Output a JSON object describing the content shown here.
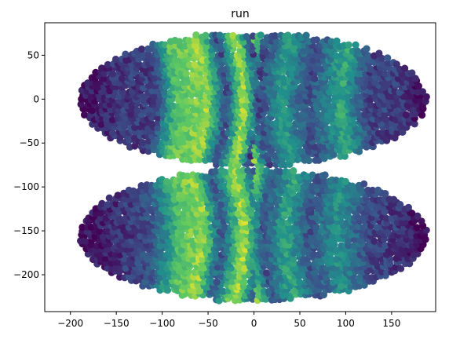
{
  "chart_data": {
    "type": "scatter",
    "title": "run",
    "xlabel": "",
    "ylabel": "",
    "xlim": [
      -228,
      198
    ],
    "ylim": [
      -242,
      87
    ],
    "xticks": [
      -200,
      -150,
      -100,
      -50,
      0,
      50,
      100,
      150
    ],
    "yticks": [
      50,
      0,
      -50,
      -100,
      -150,
      -200
    ],
    "grid": false,
    "colormap": "viridis",
    "colormap_stops": [
      "#440154",
      "#3b528b",
      "#21918c",
      "#5ec962",
      "#fde725"
    ],
    "series": [
      {
        "shape": "ellipse",
        "center": [
          0,
          0
        ],
        "semi_axes": [
          190,
          76
        ],
        "bands": [
          {
            "x": -190,
            "value": 0.04
          },
          {
            "x": -150,
            "value": 0.15
          },
          {
            "x": -105,
            "value": 0.2
          },
          {
            "x": -85,
            "value": 0.7
          },
          {
            "x": -50,
            "value": 0.85
          },
          {
            "x": -30,
            "value": 0.2
          },
          {
            "x": -10,
            "value": 0.92
          },
          {
            "x": 5,
            "value": 0.2
          },
          {
            "x": 30,
            "value": 0.55
          },
          {
            "x": 60,
            "value": 0.22
          },
          {
            "x": 95,
            "value": 0.6
          },
          {
            "x": 125,
            "value": 0.2
          },
          {
            "x": 160,
            "value": 0.18
          },
          {
            "x": 183,
            "value": 0.02
          }
        ]
      },
      {
        "shape": "ellipse",
        "center": [
          0,
          -155
        ],
        "semi_axes": [
          190,
          75
        ],
        "bands": [
          {
            "x": -190,
            "value": 0.03
          },
          {
            "x": -140,
            "value": 0.15
          },
          {
            "x": -110,
            "value": 0.25
          },
          {
            "x": -80,
            "value": 0.7
          },
          {
            "x": -55,
            "value": 0.85
          },
          {
            "x": -35,
            "value": 0.25
          },
          {
            "x": -10,
            "value": 0.9
          },
          {
            "x": 10,
            "value": 0.25
          },
          {
            "x": 35,
            "value": 0.6
          },
          {
            "x": 60,
            "value": 0.25
          },
          {
            "x": 90,
            "value": 0.5
          },
          {
            "x": 125,
            "value": 0.22
          },
          {
            "x": 160,
            "value": 0.15
          },
          {
            "x": 183,
            "value": 0.02
          }
        ]
      }
    ]
  }
}
